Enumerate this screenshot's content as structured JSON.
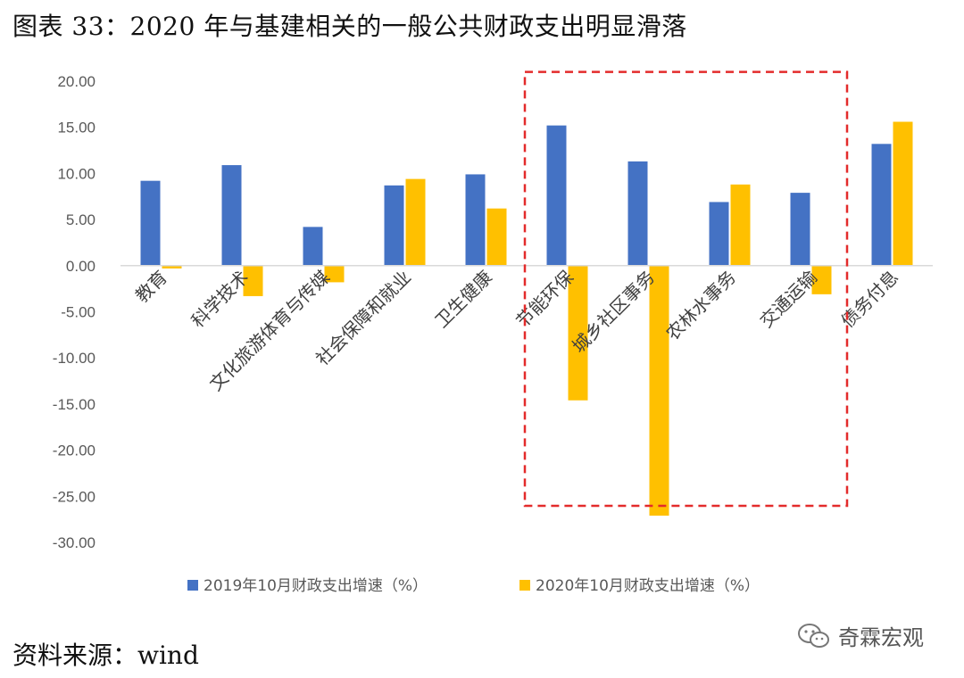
{
  "title": "图表 33：2020 年与基建相关的一般公共财政支出明显滑落",
  "source": "资料来源：wind",
  "watermark": "奇霖宏观",
  "colors": {
    "series_2019": "#4472C4",
    "series_2020": "#FFC000",
    "highlight_box": "#E32B2B"
  },
  "chart_data": {
    "type": "bar",
    "title": "",
    "xlabel": "",
    "ylabel": "",
    "ylim": [
      -30,
      20
    ],
    "yticks": [
      20,
      15,
      10,
      5,
      0,
      -5,
      -10,
      -15,
      -20,
      -25,
      -30
    ],
    "ytick_labels": [
      "20.00",
      "15.00",
      "10.00",
      "5.00",
      "0.00",
      "-5.00",
      "-10.00",
      "-15.00",
      "-20.00",
      "-25.00",
      "-30.00"
    ],
    "grid": false,
    "legend_position": "bottom",
    "categories": [
      "教育",
      "科学技术",
      "文化旅游体育与传媒",
      "社会保障和就业",
      "卫生健康",
      "节能环保",
      "城乡社区事务",
      "农林水事务",
      "交通运输",
      "债务付息"
    ],
    "series": [
      {
        "name": "2019年10月财政支出增速（%）",
        "values": [
          9.2,
          10.9,
          4.2,
          8.7,
          9.9,
          15.2,
          11.3,
          6.9,
          7.9,
          13.2
        ]
      },
      {
        "name": "2020年10月财政支出增速（%）",
        "values": [
          -0.3,
          -3.3,
          -1.8,
          9.4,
          6.2,
          -14.6,
          -27.1,
          8.8,
          -3.1,
          15.6
        ]
      }
    ],
    "highlight_categories": [
      "节能环保",
      "城乡社区事务",
      "农林水事务",
      "交通运输"
    ]
  }
}
